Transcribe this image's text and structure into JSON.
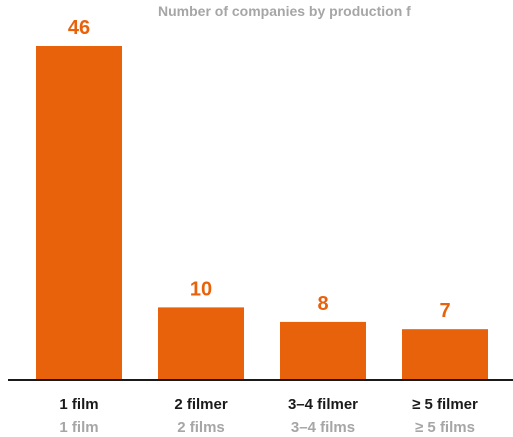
{
  "chart_data": {
    "type": "bar",
    "title": "Number of companies by production f",
    "categories": [
      "1 film",
      "2 filmer",
      "3–4 filmer",
      "≥ 5 filmer"
    ],
    "categories_secondary": [
      "1 film",
      "2 films",
      "3–4 films",
      "≥ 5 films"
    ],
    "values": [
      46,
      10,
      8,
      7
    ],
    "ylim": [
      0,
      46
    ],
    "grid": false,
    "legend": "none",
    "xlabel": "",
    "ylabel": ""
  },
  "colors": {
    "bar": "#e8620c",
    "value_label": "#e8620c",
    "axis": "#1a1a1a",
    "primary_label": "#1a1a1a",
    "secondary_label": "#a6a6a6",
    "title": "#a6a6a6"
  }
}
